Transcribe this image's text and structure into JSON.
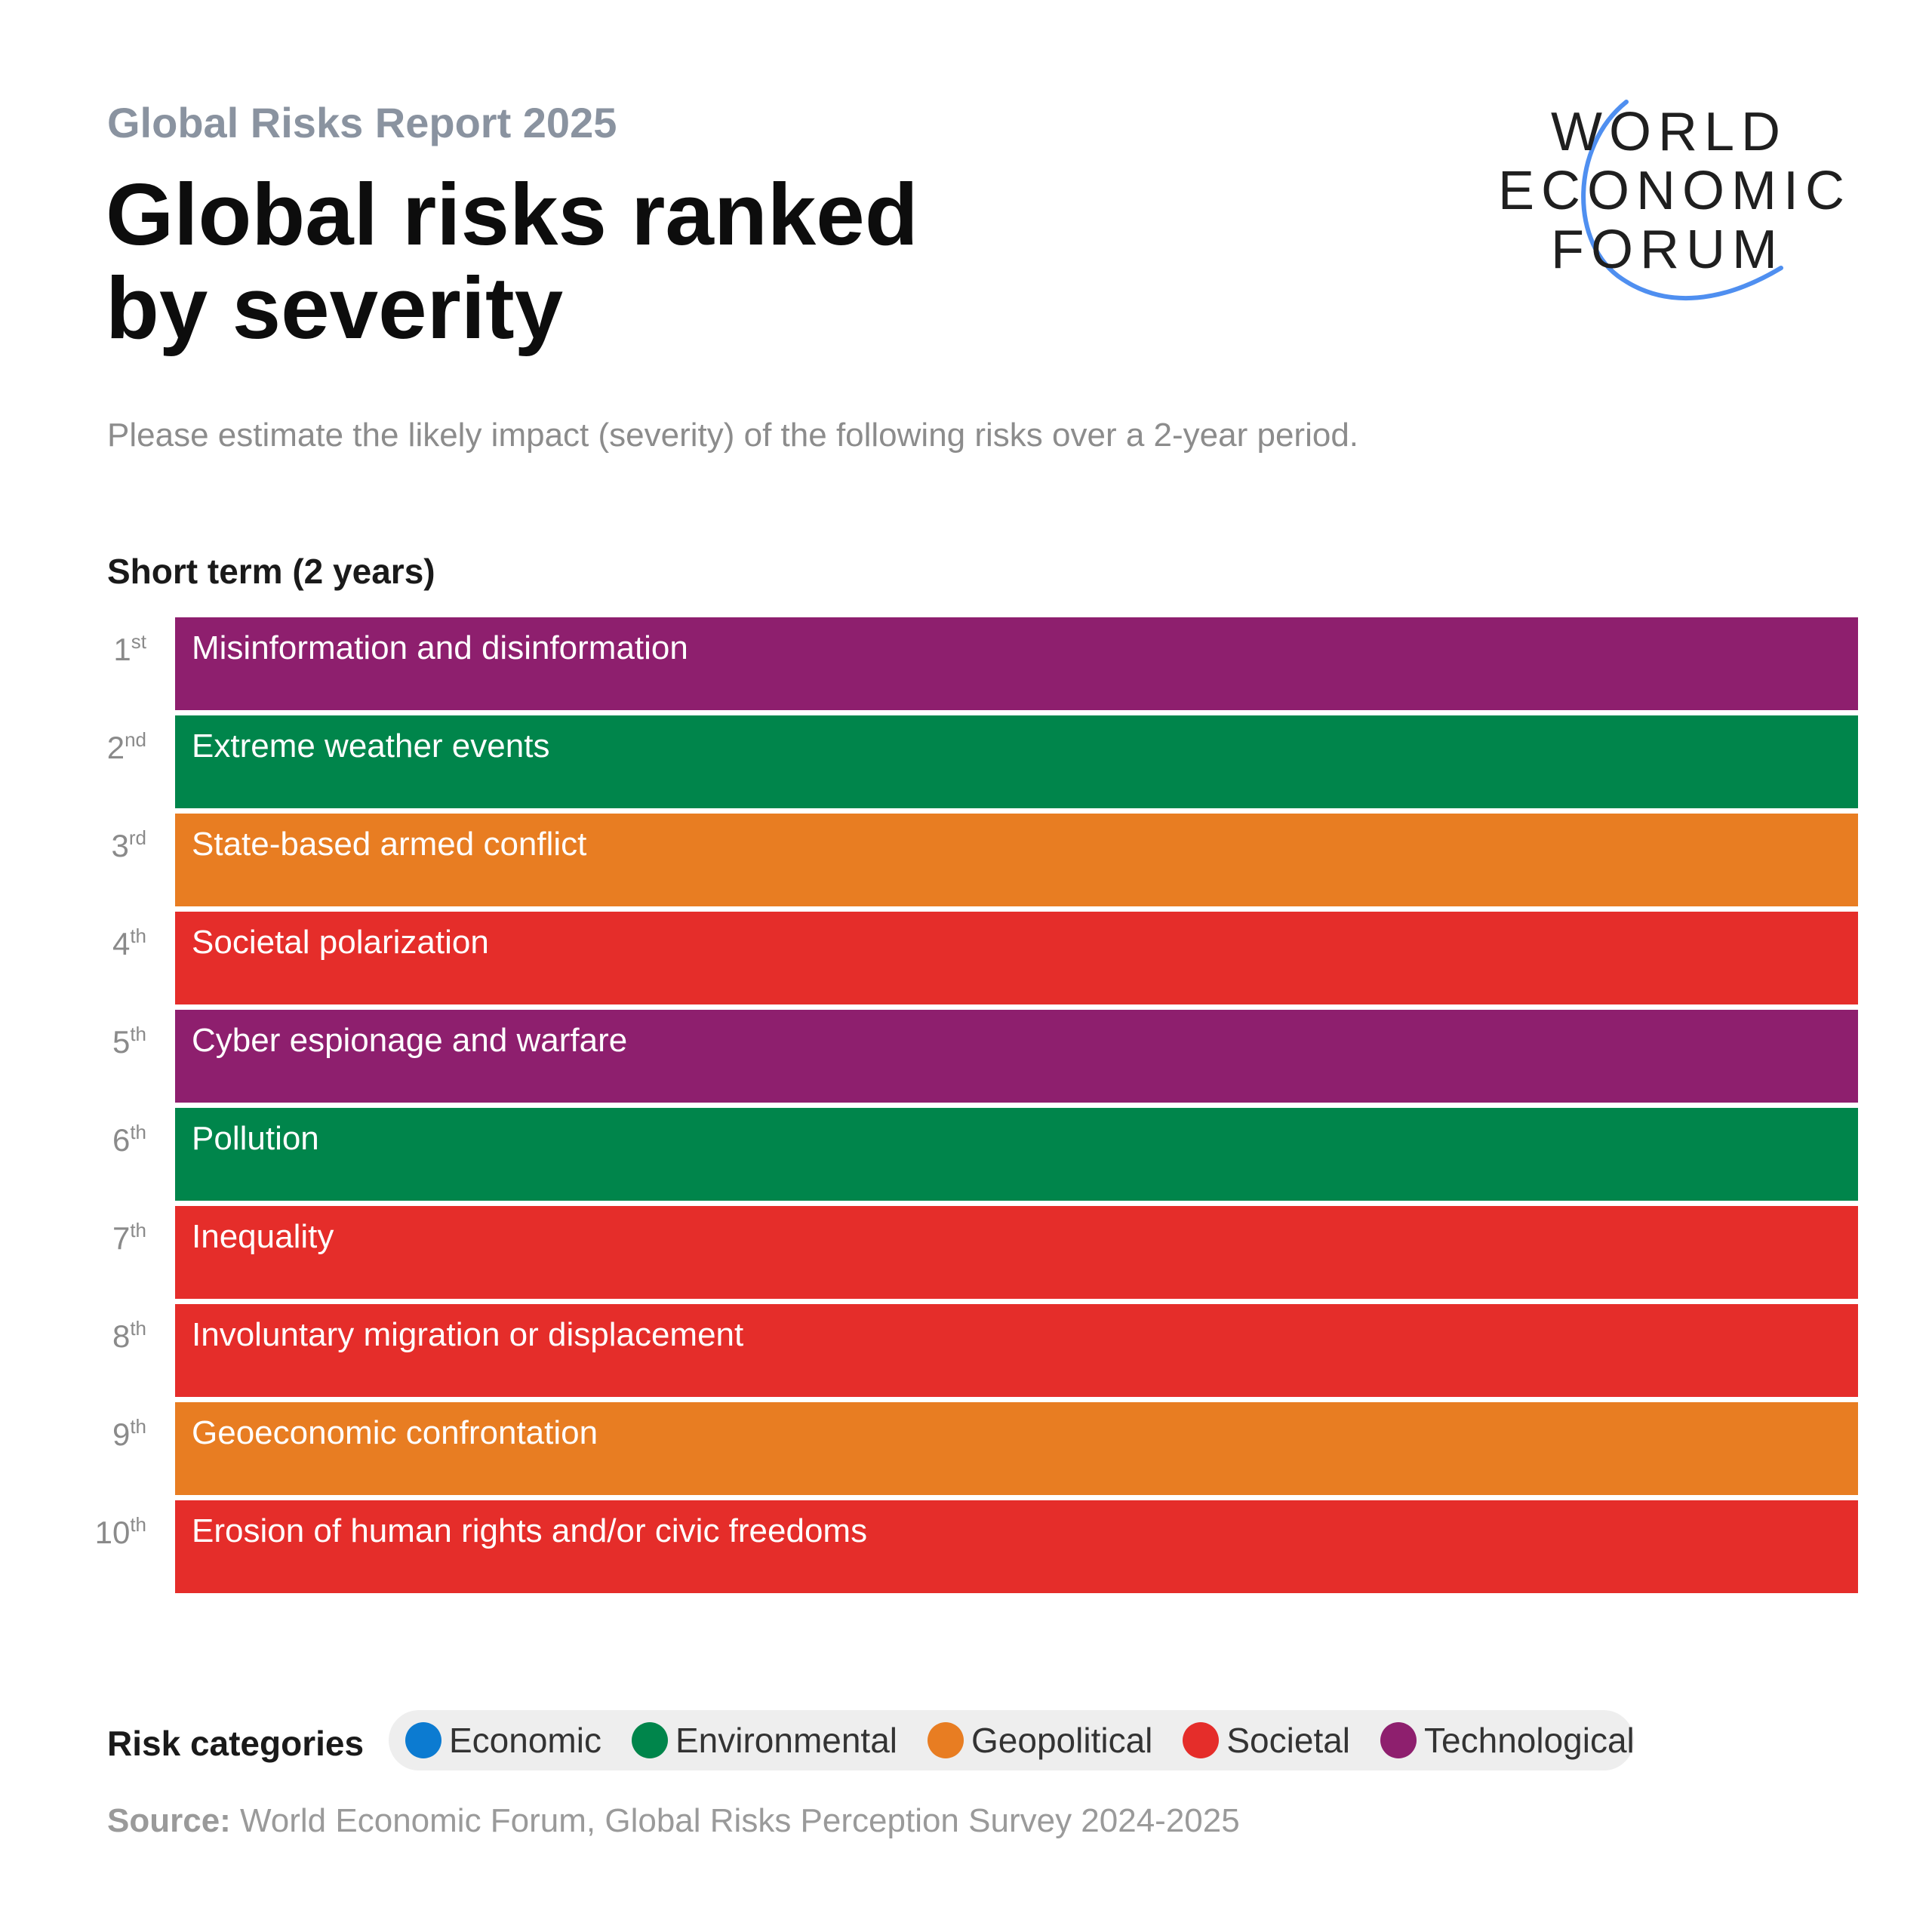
{
  "header": {
    "supertitle": "Global Risks Report 2025",
    "title_line1": "Global risks ranked",
    "title_line2": "by severity",
    "subtitle": "Please estimate the likely impact (severity) of the following risks over a 2-year period."
  },
  "logo": {
    "line1": "WORLD",
    "line2": "ECONOMIC",
    "line3": "FORUM",
    "arc_color": "#4f8ff0"
  },
  "chart_data": {
    "type": "table",
    "section_title": "Short term (2 years)",
    "rows": [
      {
        "rank": "1",
        "suffix": "st",
        "label": "Misinformation and disinformation",
        "category": "Technological"
      },
      {
        "rank": "2",
        "suffix": "nd",
        "label": "Extreme weather events",
        "category": "Environmental"
      },
      {
        "rank": "3",
        "suffix": "rd",
        "label": "State-based armed conflict",
        "category": "Geopolitical"
      },
      {
        "rank": "4",
        "suffix": "th",
        "label": "Societal polarization",
        "category": "Societal"
      },
      {
        "rank": "5",
        "suffix": "th",
        "label": "Cyber espionage and warfare",
        "category": "Technological"
      },
      {
        "rank": "6",
        "suffix": "th",
        "label": "Pollution",
        "category": "Environmental"
      },
      {
        "rank": "7",
        "suffix": "th",
        "label": "Inequality",
        "category": "Societal"
      },
      {
        "rank": "8",
        "suffix": "th",
        "label": "Involuntary migration or displacement",
        "category": "Societal"
      },
      {
        "rank": "9",
        "suffix": "th",
        "label": "Geoeconomic confrontation",
        "category": "Geopolitical"
      },
      {
        "rank": "10",
        "suffix": "th",
        "label": "Erosion of human rights and/or civic freedoms",
        "category": "Societal"
      }
    ]
  },
  "legend": {
    "title": "Risk categories",
    "items": [
      {
        "label": "Economic",
        "color": "#0c7bd1"
      },
      {
        "label": "Environmental",
        "color": "#00854b"
      },
      {
        "label": "Geopolitical",
        "color": "#e87d22"
      },
      {
        "label": "Societal",
        "color": "#e52d2a"
      },
      {
        "label": "Technological",
        "color": "#8e1f6e"
      }
    ]
  },
  "source": {
    "label": "Source:",
    "text": " World Economic Forum, Global Risks Perception Survey 2024-2025"
  }
}
